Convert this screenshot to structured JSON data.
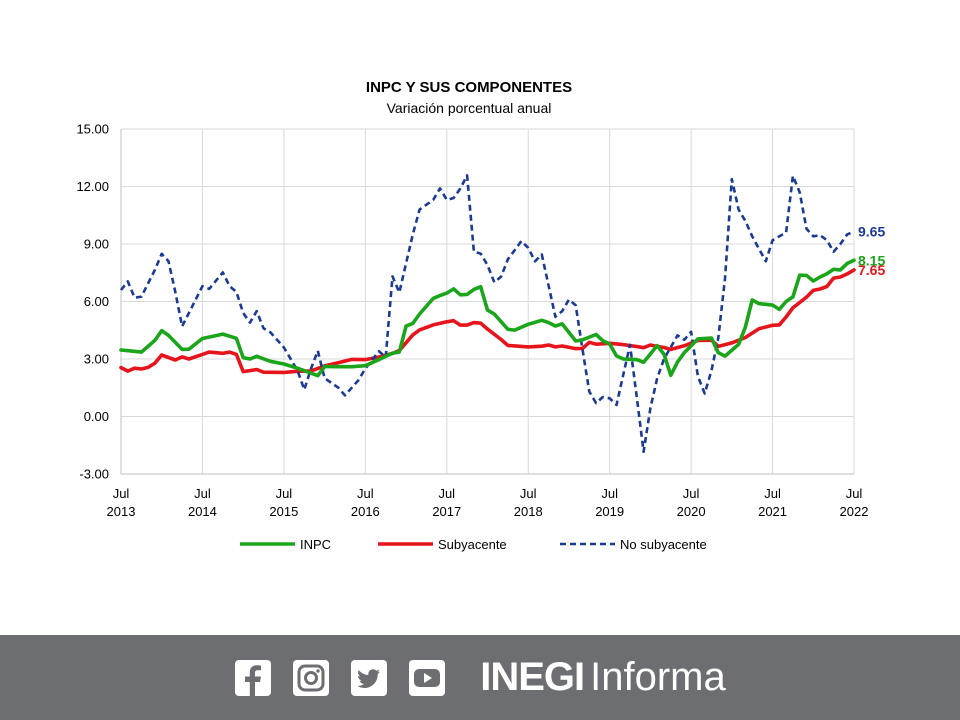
{
  "chart_data": {
    "type": "line",
    "title": "INPC Y SUS COMPONENTES",
    "subtitle": "Variación porcentual anual",
    "ylim": [
      -3,
      15
    ],
    "yticks": [
      "-3.00",
      "0.00",
      "3.00",
      "6.00",
      "9.00",
      "12.00",
      "15.00"
    ],
    "x_tick_labels": [
      {
        "month": "Jul",
        "year": "2013"
      },
      {
        "month": "Jul",
        "year": "2014"
      },
      {
        "month": "Jul",
        "year": "2015"
      },
      {
        "month": "Jul",
        "year": "2016"
      },
      {
        "month": "Jul",
        "year": "2017"
      },
      {
        "month": "Jul",
        "year": "2018"
      },
      {
        "month": "Jul",
        "year": "2019"
      },
      {
        "month": "Jul",
        "year": "2020"
      },
      {
        "month": "Jul",
        "year": "2021"
      },
      {
        "month": "Jul",
        "year": "2022"
      }
    ],
    "x_start": "2013-07",
    "x_end": "2022-07",
    "grid": true,
    "legend_position": "bottom",
    "series": [
      {
        "name": "INPC",
        "color": "#1aa51a",
        "style": "solid",
        "end_label": "8.15",
        "points": [
          [
            "2013-07",
            3.47
          ],
          [
            "2013-10",
            3.36
          ],
          [
            "2013-12",
            3.97
          ],
          [
            "2014-01",
            4.48
          ],
          [
            "2014-02",
            4.23
          ],
          [
            "2014-04",
            3.5
          ],
          [
            "2014-05",
            3.51
          ],
          [
            "2014-07",
            4.07
          ],
          [
            "2014-09",
            4.22
          ],
          [
            "2014-10",
            4.3
          ],
          [
            "2014-12",
            4.08
          ],
          [
            "2015-01",
            3.07
          ],
          [
            "2015-02",
            3.0
          ],
          [
            "2015-03",
            3.14
          ],
          [
            "2015-05",
            2.88
          ],
          [
            "2015-07",
            2.74
          ],
          [
            "2015-09",
            2.52
          ],
          [
            "2015-12",
            2.13
          ],
          [
            "2016-01",
            2.61
          ],
          [
            "2016-03",
            2.6
          ],
          [
            "2016-05",
            2.6
          ],
          [
            "2016-07",
            2.65
          ],
          [
            "2016-09",
            2.97
          ],
          [
            "2016-11",
            3.31
          ],
          [
            "2016-12",
            3.36
          ],
          [
            "2017-01",
            4.72
          ],
          [
            "2017-02",
            4.86
          ],
          [
            "2017-03",
            5.35
          ],
          [
            "2017-05",
            6.16
          ],
          [
            "2017-06",
            6.31
          ],
          [
            "2017-07",
            6.44
          ],
          [
            "2017-08",
            6.66
          ],
          [
            "2017-09",
            6.35
          ],
          [
            "2017-10",
            6.37
          ],
          [
            "2017-11",
            6.63
          ],
          [
            "2017-12",
            6.77
          ],
          [
            "2018-01",
            5.55
          ],
          [
            "2018-02",
            5.34
          ],
          [
            "2018-04",
            4.55
          ],
          [
            "2018-05",
            4.51
          ],
          [
            "2018-07",
            4.81
          ],
          [
            "2018-09",
            5.02
          ],
          [
            "2018-10",
            4.9
          ],
          [
            "2018-11",
            4.72
          ],
          [
            "2018-12",
            4.83
          ],
          [
            "2019-02",
            3.94
          ],
          [
            "2019-03",
            4.0
          ],
          [
            "2019-05",
            4.28
          ],
          [
            "2019-06",
            3.95
          ],
          [
            "2019-07",
            3.78
          ],
          [
            "2019-08",
            3.16
          ],
          [
            "2019-09",
            3.0
          ],
          [
            "2019-11",
            2.97
          ],
          [
            "2019-12",
            2.83
          ],
          [
            "2020-02",
            3.7
          ],
          [
            "2020-03",
            3.25
          ],
          [
            "2020-04",
            2.15
          ],
          [
            "2020-05",
            2.84
          ],
          [
            "2020-06",
            3.33
          ],
          [
            "2020-08",
            4.05
          ],
          [
            "2020-10",
            4.09
          ],
          [
            "2020-11",
            3.33
          ],
          [
            "2020-12",
            3.15
          ],
          [
            "2021-02",
            3.76
          ],
          [
            "2021-03",
            4.67
          ],
          [
            "2021-04",
            6.08
          ],
          [
            "2021-05",
            5.89
          ],
          [
            "2021-07",
            5.81
          ],
          [
            "2021-08",
            5.59
          ],
          [
            "2021-09",
            6.0
          ],
          [
            "2021-10",
            6.24
          ],
          [
            "2021-11",
            7.37
          ],
          [
            "2021-12",
            7.36
          ],
          [
            "2022-01",
            7.07
          ],
          [
            "2022-02",
            7.28
          ],
          [
            "2022-03",
            7.45
          ],
          [
            "2022-04",
            7.68
          ],
          [
            "2022-05",
            7.65
          ],
          [
            "2022-06",
            7.99
          ],
          [
            "2022-07",
            8.15
          ]
        ]
      },
      {
        "name": "Subyacente",
        "color": "#e8141b",
        "style": "solid",
        "end_label": "7.65",
        "points": [
          [
            "2013-07",
            2.55
          ],
          [
            "2013-08",
            2.37
          ],
          [
            "2013-09",
            2.52
          ],
          [
            "2013-10",
            2.48
          ],
          [
            "2013-11",
            2.56
          ],
          [
            "2013-12",
            2.78
          ],
          [
            "2014-01",
            3.21
          ],
          [
            "2014-03",
            2.95
          ],
          [
            "2014-04",
            3.11
          ],
          [
            "2014-05",
            3.0
          ],
          [
            "2014-07",
            3.24
          ],
          [
            "2014-08",
            3.36
          ],
          [
            "2014-10",
            3.3
          ],
          [
            "2014-11",
            3.36
          ],
          [
            "2014-12",
            3.24
          ],
          [
            "2015-01",
            2.34
          ],
          [
            "2015-03",
            2.45
          ],
          [
            "2015-04",
            2.31
          ],
          [
            "2015-07",
            2.3
          ],
          [
            "2015-09",
            2.36
          ],
          [
            "2015-11",
            2.38
          ],
          [
            "2016-01",
            2.64
          ],
          [
            "2016-03",
            2.8
          ],
          [
            "2016-05",
            2.98
          ],
          [
            "2016-07",
            2.97
          ],
          [
            "2016-09",
            3.1
          ],
          [
            "2016-11",
            3.29
          ],
          [
            "2016-12",
            3.44
          ],
          [
            "2017-02",
            4.26
          ],
          [
            "2017-03",
            4.52
          ],
          [
            "2017-05",
            4.78
          ],
          [
            "2017-07",
            4.94
          ],
          [
            "2017-08",
            5.0
          ],
          [
            "2017-09",
            4.77
          ],
          [
            "2017-10",
            4.77
          ],
          [
            "2017-11",
            4.9
          ],
          [
            "2017-12",
            4.87
          ],
          [
            "2018-01",
            4.56
          ],
          [
            "2018-03",
            4.02
          ],
          [
            "2018-04",
            3.71
          ],
          [
            "2018-07",
            3.63
          ],
          [
            "2018-09",
            3.67
          ],
          [
            "2018-10",
            3.73
          ],
          [
            "2018-11",
            3.63
          ],
          [
            "2018-12",
            3.68
          ],
          [
            "2019-02",
            3.54
          ],
          [
            "2019-03",
            3.55
          ],
          [
            "2019-04",
            3.87
          ],
          [
            "2019-05",
            3.77
          ],
          [
            "2019-07",
            3.82
          ],
          [
            "2019-09",
            3.75
          ],
          [
            "2019-11",
            3.65
          ],
          [
            "2019-12",
            3.59
          ],
          [
            "2020-01",
            3.73
          ],
          [
            "2020-02",
            3.66
          ],
          [
            "2020-03",
            3.6
          ],
          [
            "2020-04",
            3.5
          ],
          [
            "2020-06",
            3.69
          ],
          [
            "2020-08",
            3.97
          ],
          [
            "2020-10",
            3.98
          ],
          [
            "2020-11",
            3.66
          ],
          [
            "2021-01",
            3.84
          ],
          [
            "2021-03",
            4.12
          ],
          [
            "2021-05",
            4.58
          ],
          [
            "2021-07",
            4.76
          ],
          [
            "2021-08",
            4.78
          ],
          [
            "2021-09",
            5.19
          ],
          [
            "2021-10",
            5.67
          ],
          [
            "2021-11",
            5.95
          ],
          [
            "2021-12",
            6.23
          ],
          [
            "2022-01",
            6.58
          ],
          [
            "2022-02",
            6.65
          ],
          [
            "2022-03",
            6.78
          ],
          [
            "2022-04",
            7.22
          ],
          [
            "2022-05",
            7.28
          ],
          [
            "2022-06",
            7.44
          ],
          [
            "2022-07",
            7.65
          ]
        ]
      },
      {
        "name": "No subyacente",
        "color": "#1c3a94",
        "style": "dashed",
        "end_label": "9.65",
        "points": [
          [
            "2013-07",
            6.6
          ],
          [
            "2013-08",
            7.05
          ],
          [
            "2013-09",
            6.2
          ],
          [
            "2013-10",
            6.25
          ],
          [
            "2013-12",
            7.65
          ],
          [
            "2014-01",
            8.49
          ],
          [
            "2014-02",
            8.1
          ],
          [
            "2014-03",
            6.5
          ],
          [
            "2014-04",
            4.7
          ],
          [
            "2014-05",
            5.4
          ],
          [
            "2014-07",
            6.8
          ],
          [
            "2014-08",
            6.66
          ],
          [
            "2014-10",
            7.52
          ],
          [
            "2014-11",
            6.8
          ],
          [
            "2014-12",
            6.5
          ],
          [
            "2015-01",
            5.4
          ],
          [
            "2015-02",
            4.9
          ],
          [
            "2015-03",
            5.5
          ],
          [
            "2015-04",
            4.6
          ],
          [
            "2015-05",
            4.4
          ],
          [
            "2015-07",
            3.6
          ],
          [
            "2015-09",
            2.4
          ],
          [
            "2015-10",
            1.4
          ],
          [
            "2015-11",
            2.5
          ],
          [
            "2015-12",
            3.43
          ],
          [
            "2016-01",
            2.0
          ],
          [
            "2016-03",
            1.51
          ],
          [
            "2016-04",
            1.1
          ],
          [
            "2016-06",
            1.9
          ],
          [
            "2016-07",
            2.5
          ],
          [
            "2016-09",
            3.4
          ],
          [
            "2016-10",
            3.1
          ],
          [
            "2016-11",
            7.31
          ],
          [
            "2016-12",
            6.47
          ],
          [
            "2017-01",
            8.0
          ],
          [
            "2017-02",
            9.5
          ],
          [
            "2017-03",
            10.8
          ],
          [
            "2017-05",
            11.3
          ],
          [
            "2017-06",
            11.9
          ],
          [
            "2017-07",
            11.3
          ],
          [
            "2017-08",
            11.4
          ],
          [
            "2017-09",
            11.9
          ],
          [
            "2017-10",
            12.58
          ],
          [
            "2017-11",
            8.6
          ],
          [
            "2017-12",
            8.5
          ],
          [
            "2018-01",
            7.9
          ],
          [
            "2018-02",
            7.0
          ],
          [
            "2018-03",
            7.3
          ],
          [
            "2018-04",
            8.2
          ],
          [
            "2018-06",
            9.15
          ],
          [
            "2018-07",
            8.8
          ],
          [
            "2018-08",
            8.1
          ],
          [
            "2018-09",
            8.45
          ],
          [
            "2018-11",
            5.2
          ],
          [
            "2018-12",
            5.5
          ],
          [
            "2019-01",
            6.1
          ],
          [
            "2019-02",
            5.8
          ],
          [
            "2019-03",
            3.5
          ],
          [
            "2019-04",
            1.3
          ],
          [
            "2019-05",
            0.7
          ],
          [
            "2019-06",
            1.02
          ],
          [
            "2019-07",
            0.95
          ],
          [
            "2019-08",
            0.6
          ],
          [
            "2019-10",
            3.74
          ],
          [
            "2019-11",
            1.0
          ],
          [
            "2019-12",
            -1.84
          ],
          [
            "2020-01",
            0.44
          ],
          [
            "2020-02",
            2.0
          ],
          [
            "2020-03",
            3.0
          ],
          [
            "2020-05",
            4.23
          ],
          [
            "2020-06",
            4.0
          ],
          [
            "2020-07",
            4.42
          ],
          [
            "2020-08",
            2.1
          ],
          [
            "2020-09",
            1.2
          ],
          [
            "2020-10",
            2.4
          ],
          [
            "2020-11",
            4.1
          ],
          [
            "2020-12",
            7.2
          ],
          [
            "2021-01",
            12.38
          ],
          [
            "2021-02",
            10.8
          ],
          [
            "2021-03",
            10.2
          ],
          [
            "2021-04",
            9.4
          ],
          [
            "2021-06",
            8.1
          ],
          [
            "2021-07",
            9.2
          ],
          [
            "2021-09",
            9.6
          ],
          [
            "2021-10",
            12.56
          ],
          [
            "2021-11",
            11.7
          ],
          [
            "2021-12",
            9.8
          ],
          [
            "2022-01",
            9.4
          ],
          [
            "2022-02",
            9.46
          ],
          [
            "2022-03",
            9.2
          ],
          [
            "2022-04",
            8.6
          ],
          [
            "2022-05",
            9.0
          ],
          [
            "2022-06",
            9.5
          ],
          [
            "2022-07",
            9.65
          ]
        ]
      }
    ]
  },
  "footer": {
    "background": "#6d6e71",
    "social_icons": [
      "facebook-icon",
      "instagram-icon",
      "twitter-icon",
      "youtube-icon"
    ],
    "brand_bold": "INEGI",
    "brand_light": "Informa"
  }
}
